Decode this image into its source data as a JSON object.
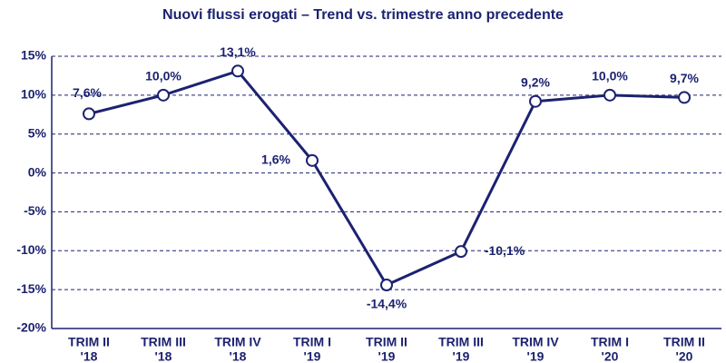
{
  "chart_data": {
    "type": "line",
    "title": "Nuovi flussi erogati – Trend vs. trimestre anno precedente",
    "categories": [
      [
        "TRIM II",
        "'18"
      ],
      [
        "TRIM III",
        "'18"
      ],
      [
        "TRIM IV",
        "'18"
      ],
      [
        "TRIM I",
        "'19"
      ],
      [
        "TRIM II",
        "'19"
      ],
      [
        "TRIM III",
        "'19"
      ],
      [
        "TRIM IV",
        "'19"
      ],
      [
        "TRIM I",
        "'20"
      ],
      [
        "TRIM II",
        "'20"
      ]
    ],
    "series": [
      {
        "color": "#1c2270",
        "values": [
          7.6,
          10.0,
          13.1,
          1.6,
          -14.4,
          -10.1,
          9.2,
          10.0,
          9.7
        ],
        "value_labels": [
          "7,6%",
          "10,0%",
          "13,1%",
          "1,6%",
          "-14,4%",
          "-10,1%",
          "9,2%",
          "10,0%",
          "9,7%"
        ]
      }
    ],
    "ylim": [
      -20,
      15
    ],
    "yticks": [
      {
        "value": 15,
        "label": "15%"
      },
      {
        "value": 10,
        "label": "10%"
      },
      {
        "value": 5,
        "label": "5%"
      },
      {
        "value": 0,
        "label": "0%"
      },
      {
        "value": -5,
        "label": "-5%"
      },
      {
        "value": -10,
        "label": "-10%"
      },
      {
        "value": -15,
        "label": "-15%"
      },
      {
        "value": -20,
        "label": "-20%"
      }
    ],
    "grid": true
  }
}
